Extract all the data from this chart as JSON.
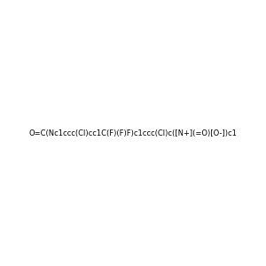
{
  "smiles": "O=C(Nc1ccc(Cl)cc1C(F)(F)F)c1ccc(Cl)c([N+](=O)[O-])c1",
  "image_size": 300,
  "background_color": "#ebebeb"
}
